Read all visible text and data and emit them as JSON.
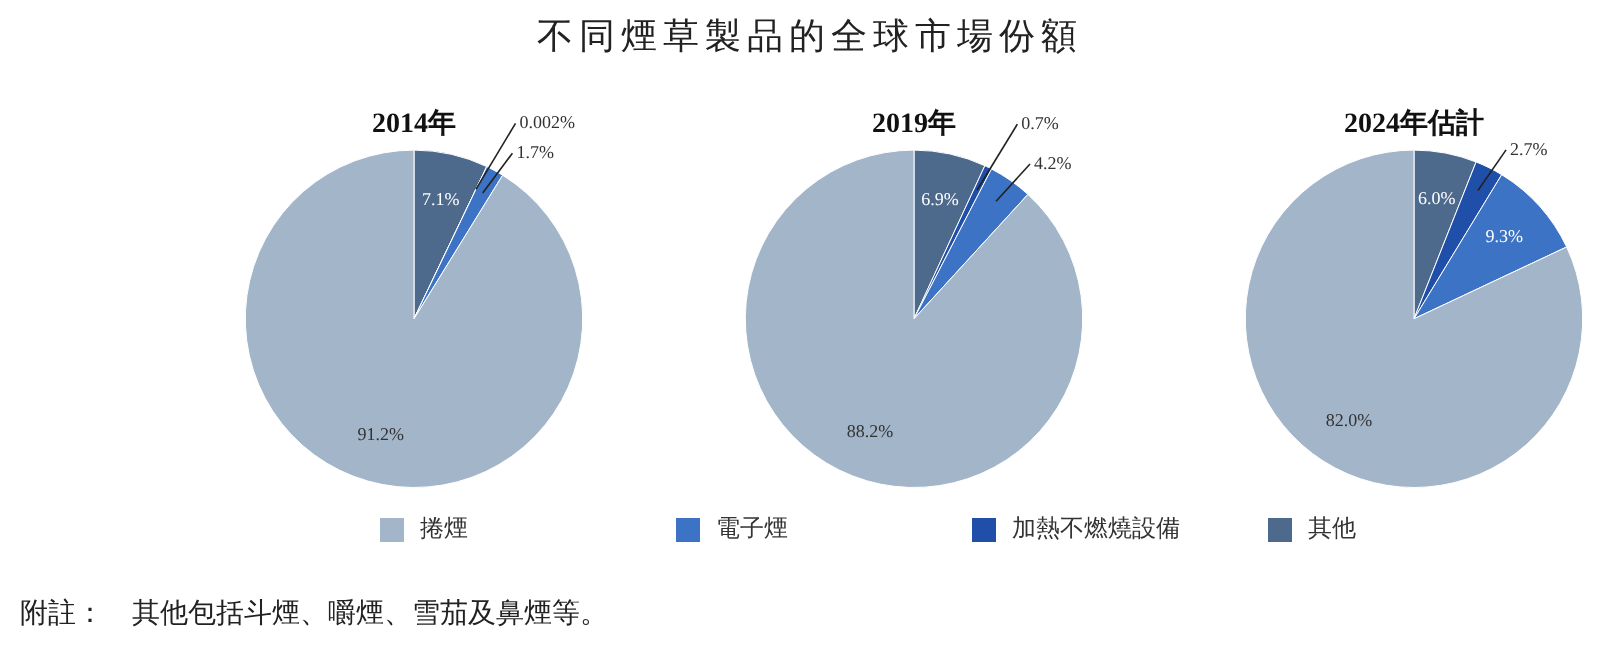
{
  "chart_data": [
    {
      "type": "pie",
      "title": "2014年",
      "categories": [
        "捲煙",
        "電子煙",
        "加熱不燃燒設備",
        "其他"
      ],
      "values": [
        91.2,
        1.7,
        0.002,
        7.1
      ],
      "value_labels": [
        "91.2%",
        "1.7%",
        "0.002%",
        "7.1%"
      ],
      "colors": [
        "#a3b5c9",
        "#3d73c4",
        "#1f4fa8",
        "#4d6a8c"
      ],
      "legend": "bottom",
      "annotations": [
        "不同煙草製品的全球市場份額",
        "附註：　其他包括斗煙、嚼煙、雪茄及鼻煙等。"
      ]
    },
    {
      "type": "pie",
      "title": "2019年",
      "categories": [
        null,
        null,
        null,
        null
      ],
      "values": [
        88.2,
        4.2,
        0.7,
        6.9
      ],
      "value_labels": [
        "88.2%",
        "4.2%",
        "0.7%",
        "6.9%"
      ],
      "colors": [
        "#a3b5c9",
        "#3d73c4",
        "#1f4fa8",
        "#4d6a8c"
      ]
    },
    {
      "type": "pie",
      "title": "2024年估計",
      "categories": [
        null,
        null,
        null,
        null
      ],
      "values": [
        82.0,
        9.3,
        2.7,
        6.0
      ],
      "value_labels": [
        "82.0%",
        "9.3%",
        "2.7%",
        "6.0%"
      ],
      "colors": [
        "#a3b5c9",
        "#3d73c4",
        "#1f4fa8",
        "#4d6a8c"
      ]
    }
  ]
}
